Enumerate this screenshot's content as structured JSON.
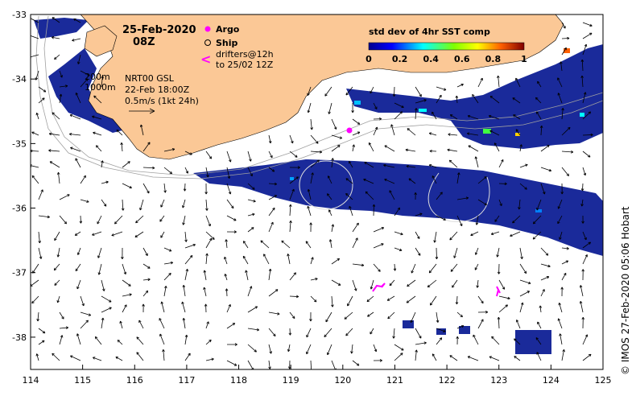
{
  "map": {
    "date": "25-Feb-2020",
    "hour": "08Z",
    "legend": {
      "argo_label": "Argo",
      "ship_label": "Ship",
      "drifters_line1": "drifters@12h",
      "drifters_line2": "to 25/02 12Z",
      "argo_color": "#ff00ff",
      "drifter_color": "#ff00ff"
    },
    "contours": {
      "c200": "200m",
      "c1000": "1000m"
    },
    "current_info": {
      "line1": "NRT00 GSL",
      "line2": "22-Feb 18:00Z",
      "line3": "0.5m/s (1kt 24h)"
    },
    "colorbar": {
      "title": "std dev of 4hr SST comp",
      "ticks": [
        "0",
        "0.2",
        "0.4",
        "0.6",
        "0.8",
        "1"
      ]
    },
    "credit": "© IMOS 27-Feb-2020 05:06 Hobart",
    "x_ticks": [
      "114",
      "115",
      "116",
      "117",
      "118",
      "119",
      "120",
      "121",
      "122",
      "123",
      "124",
      "125"
    ],
    "y_ticks": [
      "-33",
      "-34",
      "-35",
      "-36",
      "-37",
      "-38"
    ],
    "lon_range": [
      114,
      125
    ],
    "lat_range": [
      -38.5,
      -33
    ],
    "colors": {
      "land": "#fbc896",
      "sst_low": "#1a2a9a",
      "background": "#ffffff"
    }
  }
}
